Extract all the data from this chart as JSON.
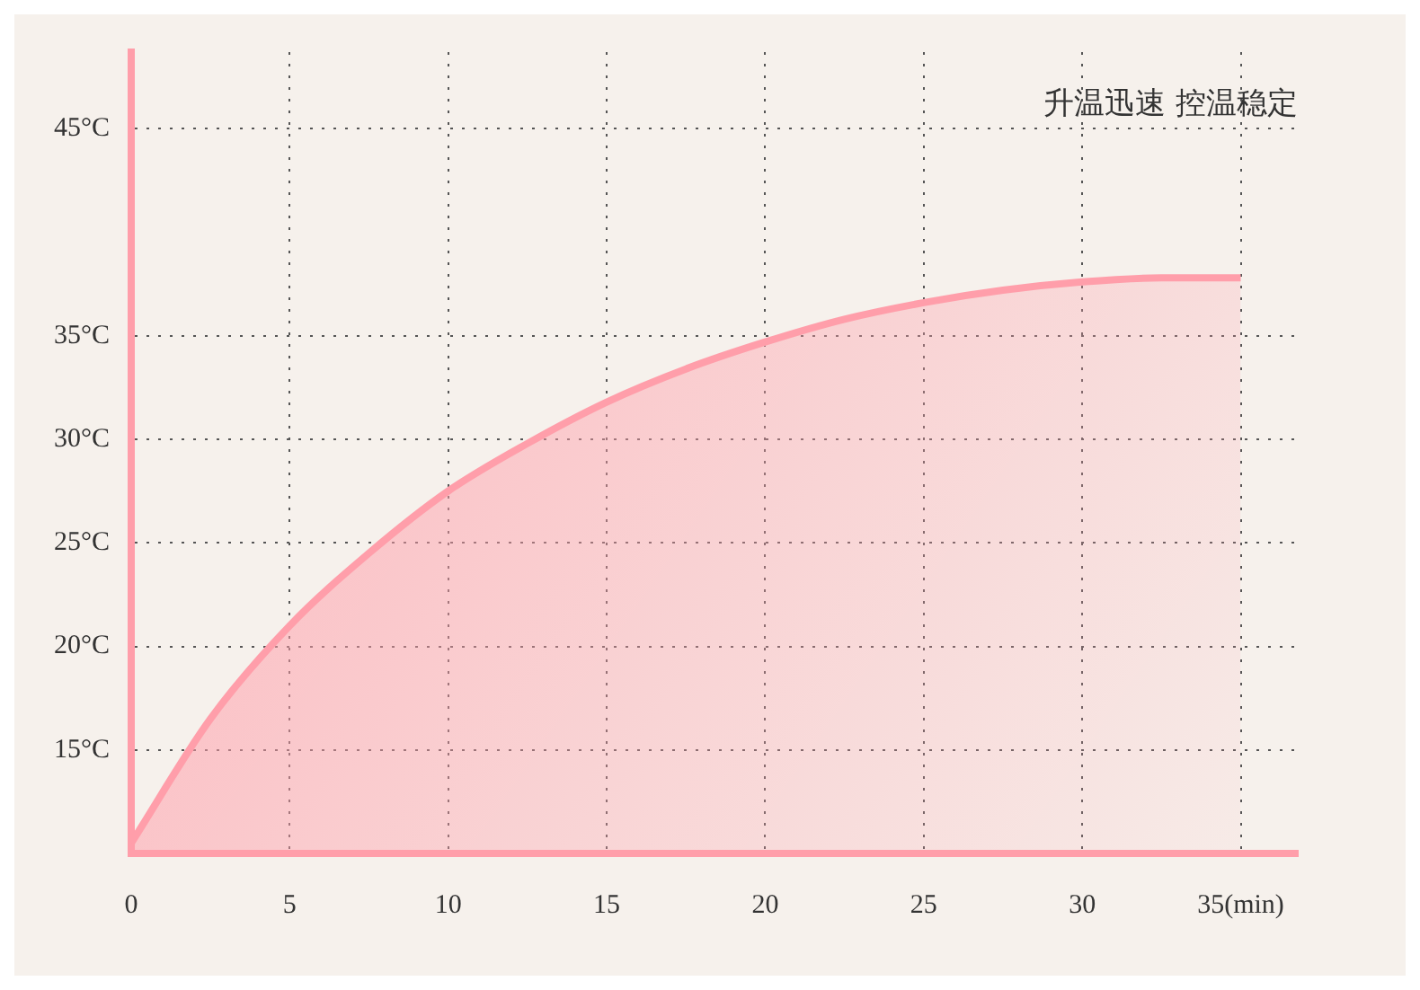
{
  "chart_data": {
    "type": "area",
    "title": "升温迅速 控温稳定",
    "series": [
      {
        "color": "#ff9eaa",
        "x": [
          0,
          2.5,
          5,
          7.5,
          10,
          12.5,
          15,
          17.5,
          20,
          22.5,
          25,
          27.5,
          30,
          32.5,
          35
        ],
        "values": [
          10.5,
          16.5,
          21,
          24.5,
          27.5,
          29.8,
          31.8,
          33.4,
          34.7,
          35.8,
          36.6,
          37.2,
          37.6,
          37.8,
          37.8
        ]
      }
    ],
    "xlim": [
      0,
      36.8
    ],
    "ylim": [
      10,
      48.7
    ],
    "xticks": [
      0,
      5,
      10,
      15,
      20,
      25,
      30,
      {
        "value": 35,
        "label": "35(min)"
      }
    ],
    "yticks": [
      {
        "value": 15,
        "label": "15°C"
      },
      {
        "value": 20,
        "label": "20°C"
      },
      {
        "value": 25,
        "label": "25°C"
      },
      {
        "value": 30,
        "label": "30°C"
      },
      {
        "value": 35,
        "label": "35°C"
      },
      {
        "value": 45,
        "label": "45°C"
      }
    ],
    "grid": true,
    "legend": false,
    "marker": "none",
    "line_style": "solid"
  }
}
